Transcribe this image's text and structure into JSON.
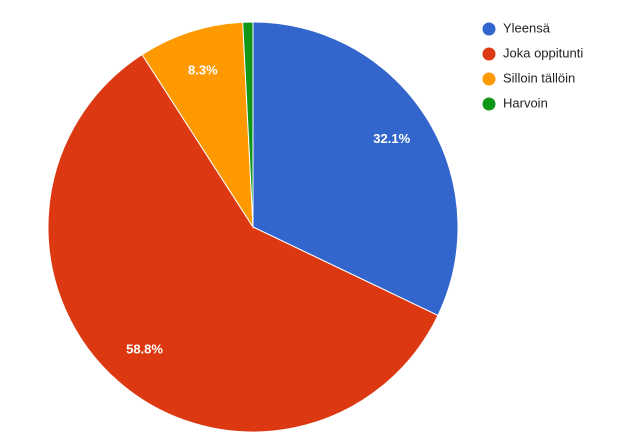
{
  "chart_data": {
    "type": "pie",
    "categories": [
      "Yleensä",
      "Joka oppitunti",
      "Silloin tällöin",
      "Harvoin"
    ],
    "values": [
      32.1,
      58.8,
      8.3,
      0.8
    ],
    "value_labels": [
      "32.1%",
      "58.8%",
      "8.3%",
      null
    ],
    "colors": [
      "#3366cc",
      "#dc3912",
      "#ff9900",
      "#109618"
    ],
    "legend": "right"
  }
}
